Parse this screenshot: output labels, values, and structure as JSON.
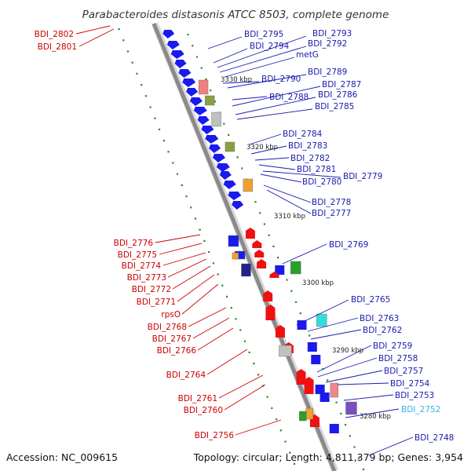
{
  "title": "Parabacteroides distasonis ATCC 8503, complete genome",
  "footer": {
    "accession": "Accession: NC_009615",
    "topology": "Topology: circular; Length: 4,811,379 bp; Genes: 3,954"
  },
  "colors": {
    "backbone": "#8a8a8a",
    "minus_strand_gene": "#1a1aee",
    "plus_strand_gene": "#ee1111",
    "tick": "#2a8a2a",
    "label_minus": "#1a1ab0",
    "label_plus": "#cc0000",
    "label_highlight": "#33b5e5"
  },
  "kbp_marks": [
    "3330 kbp",
    "3320 kbp",
    "3310 kbp",
    "3300 kbp",
    "3290 kbp",
    "3280 kbp"
  ],
  "genes_left": [
    "BDI_2802",
    "BDI_2801",
    "BDI_2776",
    "BDI_2775",
    "BDI_2774",
    "BDI_2773",
    "BDI_2772",
    "BDI_2771",
    "rpsO",
    "BDI_2768",
    "BDI_2767",
    "BDI_2766",
    "BDI_2764",
    "BDI_2761",
    "BDI_2760",
    "BDI_2756"
  ],
  "genes_right": [
    "BDI_2795",
    "BDI_2793",
    "BDI_2794",
    "BDI_2792",
    "metG",
    "BDI_2789",
    "BDI_2790",
    "BDI_2787",
    "BDI_2788",
    "BDI_2786",
    "BDI_2785",
    "BDI_2784",
    "BDI_2783",
    "BDI_2782",
    "BDI_2781",
    "BDI_2779",
    "BDI_2780",
    "BDI_2778",
    "BDI_2777",
    "BDI_2769",
    "BDI_2765",
    "BDI_2763",
    "BDI_2762",
    "BDI_2759",
    "BDI_2758",
    "BDI_2757",
    "BDI_2754",
    "BDI_2753",
    "BDI_2752",
    "BDI_2748"
  ]
}
